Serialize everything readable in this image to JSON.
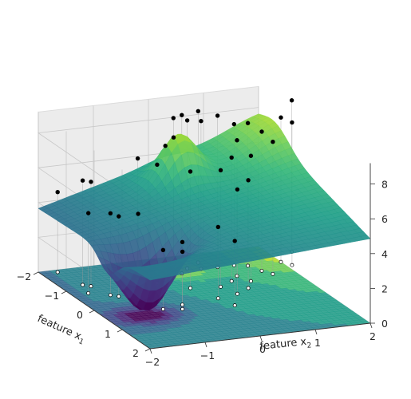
{
  "chart_data": {
    "type": "surface3d",
    "title": "",
    "xlabel": "feature x",
    "xlabel_sub": "1",
    "ylabel": "feature x",
    "ylabel_sub": "2",
    "zlabel": "",
    "x_ticks": [
      "-2",
      "-1",
      "0",
      "1",
      "2"
    ],
    "y_ticks": [
      "-2",
      "-1",
      "0",
      "1",
      "2"
    ],
    "z_ticks": [
      "0",
      "2",
      "4",
      "6",
      "8"
    ],
    "xlim": [
      -2,
      2
    ],
    "ylim": [
      -2,
      2
    ],
    "zlim": [
      0,
      9.2
    ],
    "colormap": "viridis",
    "surface_color_range": [
      0.6,
      9.0
    ],
    "grid": true,
    "projected_contours_on_floor": true,
    "marker_color": "#000000",
    "points": [
      {
        "x1": -1.9,
        "x2": -1.7,
        "z": 4.6
      },
      {
        "x1": -1.2,
        "x2": -1.6,
        "z": 6.0
      },
      {
        "x1": -1.1,
        "x2": -1.5,
        "z": 6.0
      },
      {
        "x1": -0.8,
        "x2": -1.7,
        "z": 4.6
      },
      {
        "x1": -0.6,
        "x2": -1.4,
        "z": 4.7
      },
      {
        "x1": -0.5,
        "x2": -1.3,
        "z": 4.6
      },
      {
        "x1": -0.2,
        "x2": -1.1,
        "z": 5.0
      },
      {
        "x1": 0.3,
        "x2": -0.9,
        "z": 3.4
      },
      {
        "x1": 0.4,
        "x2": -0.6,
        "z": 3.3
      },
      {
        "x1": 0.2,
        "x2": -0.5,
        "z": 3.6
      },
      {
        "x1": -1.2,
        "x2": -0.6,
        "z": 6.9
      },
      {
        "x1": -0.9,
        "x2": -0.4,
        "z": 6.8
      },
      {
        "x1": -1.0,
        "x2": -0.2,
        "z": 7.7
      },
      {
        "x1": -1.1,
        "x2": 0.0,
        "z": 8.0
      },
      {
        "x1": -0.5,
        "x2": 0.0,
        "z": 6.7
      },
      {
        "x1": 0.1,
        "x2": 0.2,
        "z": 4.1
      },
      {
        "x1": 0.5,
        "x2": 0.3,
        "z": 3.7
      },
      {
        "x1": -0.4,
        "x2": 0.5,
        "z": 6.7
      },
      {
        "x1": -0.6,
        "x2": 0.8,
        "z": 7.1
      },
      {
        "x1": -1.5,
        "x2": 0.2,
        "z": 8.6
      },
      {
        "x1": -1.4,
        "x2": 0.4,
        "z": 8.5
      },
      {
        "x1": -1.3,
        "x2": 0.6,
        "z": 8.5
      },
      {
        "x1": -1.6,
        "x2": 0.7,
        "z": 8.7
      },
      {
        "x1": -1.3,
        "x2": 0.9,
        "z": 8.7
      },
      {
        "x1": -1.2,
        "x2": 0.2,
        "z": 9.1
      },
      {
        "x1": -0.8,
        "x2": 1.0,
        "z": 7.8
      },
      {
        "x1": -0.5,
        "x2": 1.1,
        "z": 7.2
      },
      {
        "x1": -1.3,
        "x2": 1.2,
        "z": 8.1
      },
      {
        "x1": -1.2,
        "x2": 1.4,
        "z": 8.2
      },
      {
        "x1": -0.9,
        "x2": 1.5,
        "z": 8.0
      },
      {
        "x1": -0.7,
        "x2": 1.6,
        "z": 7.6
      },
      {
        "x1": -1.2,
        "x2": 2.0,
        "z": 8.3
      },
      {
        "x1": -1.0,
        "x2": 2.1,
        "z": 8.2
      },
      {
        "x1": -1.6,
        "x2": 2.4,
        "z": 8.7
      },
      {
        "x1": -0.2,
        "x2": 0.9,
        "z": 6.2
      },
      {
        "x1": 0.0,
        "x2": 0.6,
        "z": 6.0
      }
    ]
  }
}
